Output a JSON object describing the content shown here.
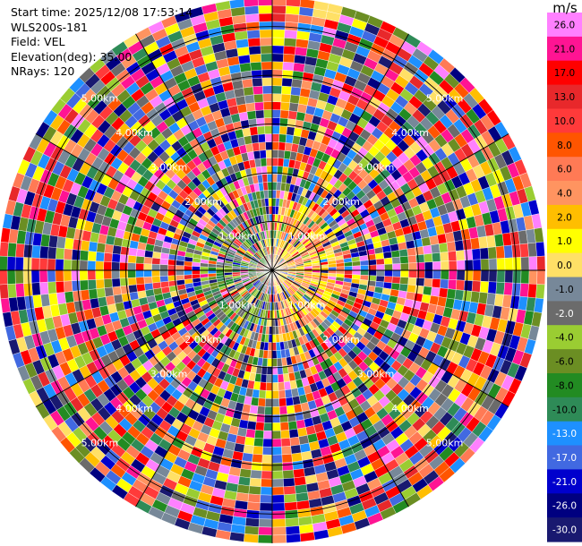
{
  "info": {
    "start_time": "Start time: 2025/12/08 17:53:14",
    "instrument": "WLS200s-181",
    "field": "Field: VEL",
    "elevation": "Elevation(deg): 35.00",
    "nrays": "NRays: 120"
  },
  "chart_data": {
    "type": "heatmap",
    "projection": "polar-ppi",
    "field": "VEL",
    "n_rays": 120,
    "range_rings_km": [
      "1.00km",
      "2.00km",
      "3.00km",
      "4.00km",
      "5.00km"
    ],
    "colorbar": {
      "unit": "m/s",
      "ticks": [
        "26.0",
        "21.0",
        "17.0",
        "13.0",
        "10.0",
        "8.0",
        "6.0",
        "4.0",
        "2.0",
        "1.0",
        "0.0",
        "-1.0",
        "-2.0",
        "-4.0",
        "-6.0",
        "-8.0",
        "-10.0",
        "-13.0",
        "-17.0",
        "-21.0",
        "-26.0",
        "-30.0"
      ],
      "colors": [
        "#ff80ff",
        "#ff1493",
        "#ff0000",
        "#e8282b",
        "#ff3a3a",
        "#ff5500",
        "#ff7a55",
        "#ff9460",
        "#ffbe00",
        "#ffff00",
        "#ffe066",
        "#778899",
        "#6b6b6b",
        "#9acd32",
        "#6b8e23",
        "#228b22",
        "#2e8b57",
        "#1e90ff",
        "#4169e1",
        "#0000cd",
        "#000080",
        "#191970"
      ]
    },
    "grid": true
  }
}
